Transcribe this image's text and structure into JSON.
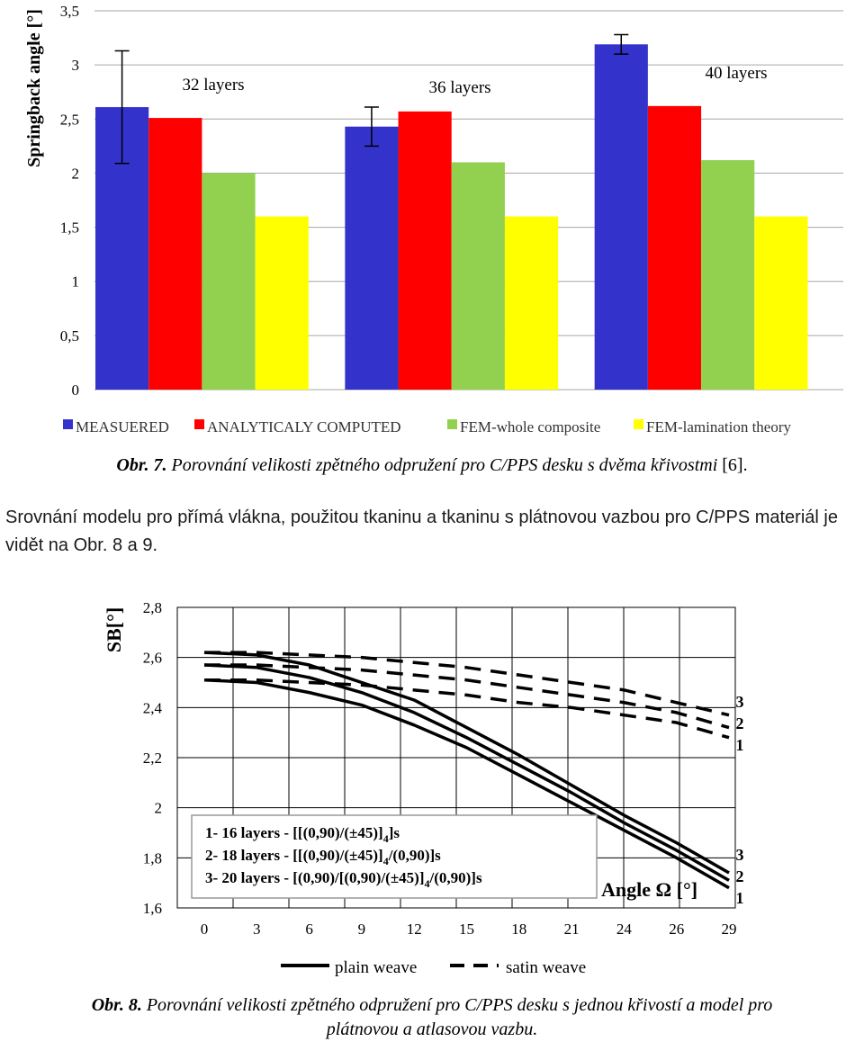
{
  "chart_data": [
    {
      "type": "bar",
      "ylabel": "Springback angle [°]",
      "ylim": [
        0,
        3.5
      ],
      "yticks": [
        "0",
        "0,5",
        "1",
        "1,5",
        "2",
        "2,5",
        "3",
        "3,5"
      ],
      "grid": true,
      "legend_position": "bottom",
      "groups": [
        "32 layers",
        "36 layers",
        "40 layers"
      ],
      "series": [
        {
          "name": "MEASUERED",
          "color": "#3333cc",
          "values": [
            2.61,
            2.43,
            3.19
          ],
          "error": [
            0.52,
            0.18,
            0.09
          ]
        },
        {
          "name": "ANALYTICALY COMPUTED",
          "color": "#ff0000",
          "values": [
            2.51,
            2.57,
            2.62
          ]
        },
        {
          "name": "FEM-whole composite",
          "color": "#92d050",
          "values": [
            2.0,
            2.1,
            2.12
          ]
        },
        {
          "name": "FEM-lamination theory",
          "color": "#ffff00",
          "values": [
            1.6,
            1.6,
            1.6
          ]
        }
      ]
    },
    {
      "type": "line",
      "ylabel": "SB[°]",
      "xlabel": "Angle Ω [°]",
      "ylim": [
        1.6,
        2.8
      ],
      "yticks": [
        "2,8",
        "2,6",
        "2,4",
        "2,2",
        "2",
        "1,8",
        "1,6"
      ],
      "x": [
        "0",
        "3",
        "6",
        "9",
        "12",
        "15",
        "18",
        "21",
        "24",
        "26",
        "29"
      ],
      "grid": true,
      "legend_position": "bottom",
      "legend": [
        {
          "name": "plain weave",
          "style": "solid"
        },
        {
          "name": "satin weave",
          "style": "dashed"
        }
      ],
      "annotation_lines": [
        "1- 16 layers - [[(0,90)/(±45)]",
        "2- 18 layers - [[(0,90)/(±45)]",
        "3- 20 layers - [(0,90)/[(0,90)/(±45)]"
      ],
      "annotation_sub": "4",
      "annotation_tails": [
        "]s",
        "/(0,90)]s",
        "/(0,90)]s"
      ],
      "series": [
        {
          "label": "1",
          "style": "solid",
          "values": [
            2.51,
            2.5,
            2.46,
            2.41,
            2.33,
            2.24,
            2.13,
            2.02,
            1.91,
            1.8,
            1.68
          ]
        },
        {
          "label": "2",
          "style": "solid",
          "values": [
            2.57,
            2.56,
            2.52,
            2.46,
            2.38,
            2.28,
            2.17,
            2.06,
            1.94,
            1.83,
            1.71
          ]
        },
        {
          "label": "3",
          "style": "solid",
          "values": [
            2.62,
            2.61,
            2.57,
            2.5,
            2.43,
            2.32,
            2.21,
            2.09,
            1.97,
            1.86,
            1.74
          ]
        },
        {
          "label": "1",
          "style": "dashed",
          "values": [
            2.51,
            2.51,
            2.5,
            2.49,
            2.47,
            2.45,
            2.42,
            2.4,
            2.37,
            2.34,
            2.28
          ]
        },
        {
          "label": "2",
          "style": "dashed",
          "values": [
            2.57,
            2.57,
            2.56,
            2.55,
            2.53,
            2.51,
            2.48,
            2.45,
            2.42,
            2.38,
            2.32
          ]
        },
        {
          "label": "3",
          "style": "dashed",
          "values": [
            2.62,
            2.62,
            2.61,
            2.6,
            2.58,
            2.56,
            2.53,
            2.5,
            2.47,
            2.42,
            2.37
          ]
        }
      ]
    }
  ],
  "caption7": {
    "label": "Obr. 7.",
    "text": " Porovnání velikosti zpětného odpružení pro C/PPS desku s dvěma křivostmi",
    "ref": " [6]."
  },
  "paragraph": "Srovnání modelu pro přímá vlákna, použitou tkaninu a tkaninu s plátnovou vazbou pro C/PPS materiál je vidět na Obr. 8 a 9.",
  "caption8": {
    "label": "Obr. 8.",
    "text": " Porovnání velikosti zpětného odpružení pro C/PPS desku s jednou křivostí a model pro",
    "line2": "plátnovou a atlasovou vazbu."
  }
}
